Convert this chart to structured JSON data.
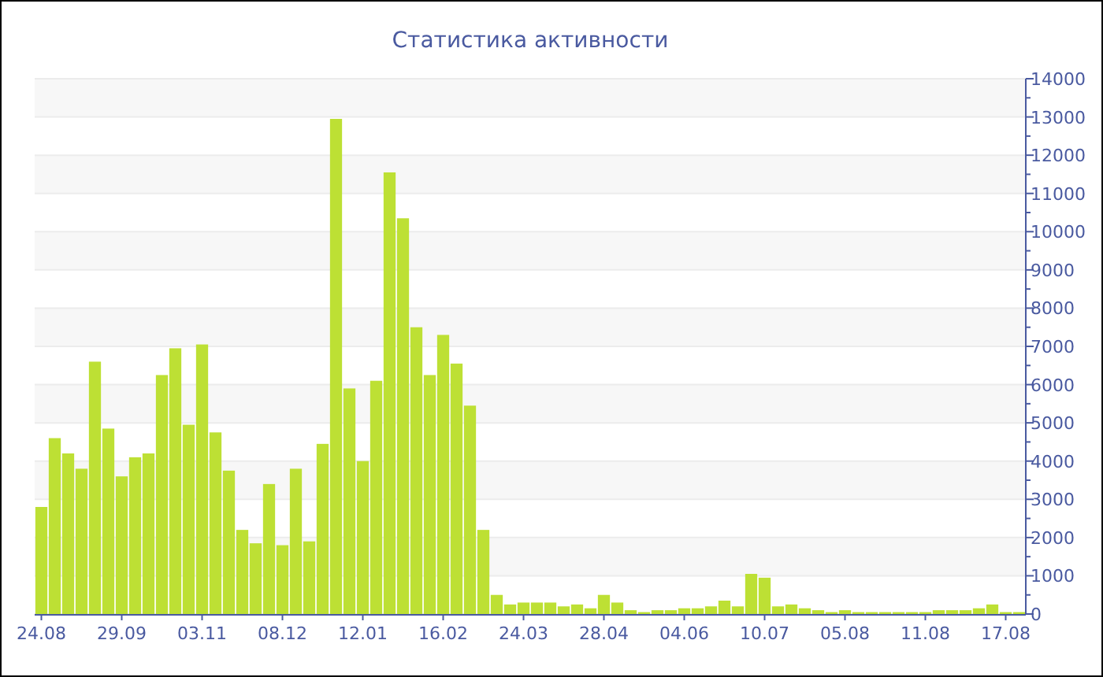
{
  "chart_data": {
    "type": "bar",
    "title": "Статистика активности",
    "categories": [
      "24.08",
      null,
      null,
      null,
      null,
      null,
      "29.09",
      null,
      null,
      null,
      null,
      null,
      "03.11",
      null,
      null,
      null,
      null,
      null,
      "08.12",
      null,
      null,
      null,
      null,
      null,
      "12.01",
      null,
      null,
      null,
      null,
      null,
      "16.02",
      null,
      null,
      null,
      null,
      null,
      "24.03",
      null,
      null,
      null,
      null,
      null,
      "28.04",
      null,
      null,
      null,
      null,
      null,
      "04.06",
      null,
      null,
      null,
      null,
      null,
      "10.07",
      null,
      null,
      null,
      null,
      null,
      "05.08",
      null,
      null,
      null,
      null,
      null,
      "11.08",
      null,
      null,
      null,
      null,
      null,
      "17.08",
      null
    ],
    "values": [
      2800,
      4600,
      4200,
      3800,
      6600,
      4850,
      3600,
      4100,
      4200,
      6250,
      6950,
      4950,
      7050,
      4750,
      3750,
      2200,
      1850,
      3400,
      1800,
      3800,
      1900,
      4450,
      12950,
      5900,
      4000,
      6100,
      11550,
      10350,
      7500,
      6250,
      7300,
      6550,
      5450,
      2200,
      500,
      250,
      300,
      300,
      300,
      200,
      250,
      150,
      500,
      300,
      100,
      50,
      100,
      100,
      150,
      150,
      200,
      350,
      200,
      1050,
      950,
      200,
      250,
      150,
      100,
      50,
      100,
      50,
      50,
      50,
      50,
      50,
      50,
      100,
      100,
      100,
      150,
      250,
      50,
      50
    ],
    "color": "#bde034",
    "ylim": [
      0,
      14000
    ],
    "yticks": [
      0,
      {
        "value": 500,
        "label": null
      },
      1000,
      {
        "value": 1500,
        "label": null
      },
      2000,
      {
        "value": 2500,
        "label": null
      },
      3000,
      {
        "value": 3500,
        "label": null
      },
      4000,
      {
        "value": 4500,
        "label": null
      },
      5000,
      {
        "value": 5500,
        "label": null
      },
      6000,
      {
        "value": 6500,
        "label": null
      },
      7000,
      {
        "value": 7500,
        "label": null
      },
      8000,
      {
        "value": 8500,
        "label": null
      },
      9000,
      {
        "value": 9500,
        "label": null
      },
      10000,
      {
        "value": 10500,
        "label": null
      },
      11000,
      {
        "value": 11500,
        "label": null
      },
      12000,
      {
        "value": 12500,
        "label": null
      },
      13000,
      {
        "value": 13500,
        "label": null
      },
      14000
    ],
    "grid": "y"
  }
}
